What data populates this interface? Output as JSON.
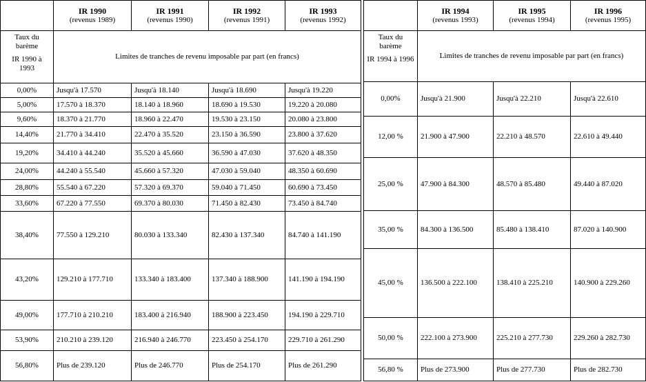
{
  "left": {
    "headers": [
      {
        "title": "IR 1990",
        "subtitle": "(revenus 1989)"
      },
      {
        "title": "IR 1991",
        "subtitle": "(revenus 1990)"
      },
      {
        "title": "IR 1992",
        "subtitle": "(revenus 1991)"
      },
      {
        "title": "IR 1993",
        "subtitle": "(revenus 1992)"
      }
    ],
    "rate_header": [
      "Taux du barème",
      "IR 1990 à 1993"
    ],
    "caption": "Limites de tranches de revenu imposable par part (en francs)",
    "rows": [
      [
        "0,00%",
        "Jusqu'à 17.570",
        "Jusqu'à 18.140",
        "Jusqu'à 18.690",
        "Jusqu'à 19.220"
      ],
      [
        "5,00%",
        "17.570 à 18.370",
        "18.140 à 18.960",
        "18.690 à 19.530",
        "19.220 à 20.080"
      ],
      [
        "9,60%",
        "18.370 à 21.770",
        "18.960 à 22.470",
        "19.530 à 23.150",
        "20.080 à 23.800"
      ],
      [
        "14,40%",
        "21.770 à 34.410",
        "22.470 à 35.520",
        "23.150 à 36.590",
        "23.800 à 37.620"
      ],
      [
        "19,20%",
        "34.410 à 44.240",
        "35.520 à 45.660",
        "36.590 à 47.030",
        "37.620 à 48.350"
      ],
      [
        "24,00%",
        "44.240 à 55.540",
        "45.660 à 57.320",
        "47.030 à 59.040",
        "48.350 à 60.690"
      ],
      [
        "28,80%",
        "55.540 à 67.220",
        "57.320 à 69.370",
        "59.040 à 71.450",
        "60.690 à 73.450"
      ],
      [
        "33,60%",
        "67.220 à 77.550",
        "69.370 à 80.030",
        "71.450 à 82.430",
        "73.450 à 84.740"
      ],
      [
        "38,40%",
        "77.550 à 129.210",
        "80.030 à 133.340",
        "82.430 à 137.340",
        "84.740 à 141.190"
      ],
      [
        "43,20%",
        "129.210 à 177.710",
        "133.340 à 183.400",
        "137.340 à 188.900",
        "141.190 à 194.190"
      ],
      [
        "49,00%",
        "177.710 à 210.210",
        "183.400 à 216.940",
        "188.900 à 223.450",
        "194.190 à 229.710"
      ],
      [
        "53,90%",
        "210.210 à 239.120",
        "216.940 à 246.770",
        "223.450 à 254.170",
        "229.710 à 261.290"
      ],
      [
        "56,80%",
        "Plus de 239.120",
        "Plus de 246.770",
        "Plus de 254.170",
        "Plus de 261.290"
      ]
    ]
  },
  "right": {
    "headers": [
      {
        "title": "IR 1994",
        "subtitle": "(revenus 1993)"
      },
      {
        "title": "IR 1995",
        "subtitle": "(revenus 1994)"
      },
      {
        "title": "IR 1996",
        "subtitle": "(revenus 1995)"
      }
    ],
    "rate_header": [
      "Taux du barème",
      "IR 1994 à 1996"
    ],
    "caption": "Limites de tranches de revenu imposable par part (en francs)",
    "rows": [
      [
        "0,00%",
        "Jusqu'à 21.900",
        "Jusqu'à 22.210",
        "Jusqu'à 22.610"
      ],
      [
        "12,00 %",
        "21.900 à 47.900",
        "22.210 à 48.570",
        "22.610 à 49.440"
      ],
      [
        "25,00 %",
        "47.900 à 84.300",
        "48.570 à 85.480",
        "49.440 à 87.020"
      ],
      [
        "35,00 %",
        "84.300 à 136.500",
        "85.480 à 138.410",
        "87.020 à 140.900"
      ],
      [
        "45,00 %",
        "136.500 à 222.100",
        "138.410 à 225.210",
        "140.900 à 229.260"
      ],
      [
        "50,00 %",
        "222.100 à 273.900",
        "225.210 à 277.730",
        "229.260 à 282.730"
      ],
      [
        "56,80 %",
        "Plus de 273.900",
        "Plus de 277.730",
        "Plus de 282.730"
      ]
    ]
  }
}
